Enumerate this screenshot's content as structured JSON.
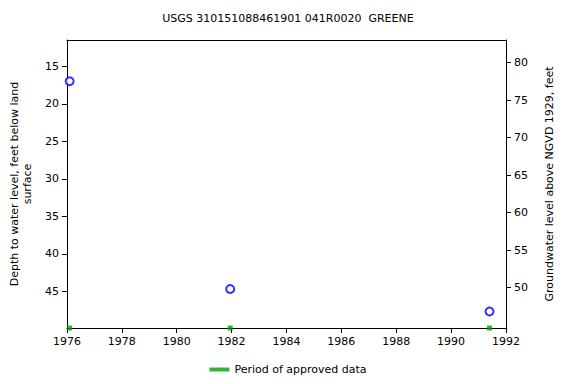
{
  "chart_data": {
    "type": "scatter",
    "title": "USGS 310151088461901 041R0020  GREENE",
    "ylabel": "Depth to water level, feet below land\nsurface",
    "y2label": "Groundwater level above NGVD 1929, feet",
    "xlim": [
      1976,
      1992
    ],
    "xticks": [
      1976,
      1978,
      1980,
      1982,
      1984,
      1986,
      1988,
      1990,
      1992
    ],
    "ylim": [
      49.9,
      11.5
    ],
    "yticks": [
      15,
      20,
      25,
      30,
      35,
      40,
      45
    ],
    "y2lim": [
      44.6,
      83.0
    ],
    "y2ticks": [
      50,
      55,
      60,
      65,
      70,
      75,
      80
    ],
    "grid": false,
    "legend": "bottom",
    "x": [
      1976.1,
      1981.95,
      1991.4
    ],
    "values": [
      17,
      44.7,
      47.7
    ],
    "color": "#0000ff",
    "marker": "emptyCircle",
    "approved_periods": {
      "name": "Period of approved data",
      "color": "#00a000",
      "marker": "square",
      "x": [
        1976.1,
        1981.95,
        1991.4
      ]
    }
  }
}
